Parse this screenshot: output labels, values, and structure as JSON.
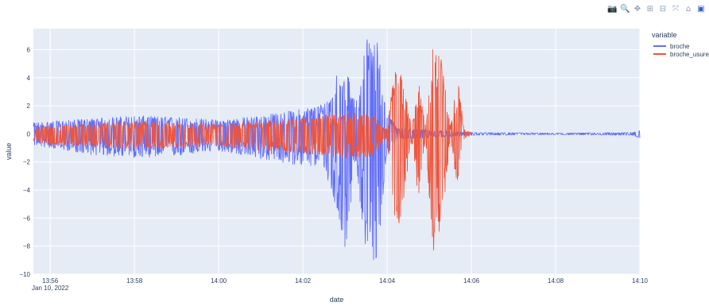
{
  "modebar": {
    "buttons": [
      {
        "name": "camera-icon",
        "glyph": "📷"
      },
      {
        "name": "zoom-icon",
        "glyph": "🔍"
      },
      {
        "name": "pan-icon",
        "glyph": "✥"
      },
      {
        "name": "zoom-in-icon",
        "glyph": "⊞"
      },
      {
        "name": "zoom-out-icon",
        "glyph": "⊟"
      },
      {
        "name": "autoscale-icon",
        "glyph": "⤧"
      },
      {
        "name": "home-icon",
        "glyph": "⌂"
      },
      {
        "name": "plotly-logo-icon",
        "glyph": "▣"
      }
    ]
  },
  "chart_data": {
    "type": "line",
    "xlabel": "date",
    "ylabel": "value",
    "x_range": [
      "2022-01-10 13:55:36",
      "2022-01-10 14:10:00"
    ],
    "ylim": [
      -10,
      7.5
    ],
    "x_ticks": [
      {
        "time": "2022-01-10 13:56:00",
        "label": "13:56",
        "sublabel": "Jan 10, 2022"
      },
      {
        "time": "2022-01-10 13:58:00",
        "label": "13:58",
        "sublabel": ""
      },
      {
        "time": "2022-01-10 14:00:00",
        "label": "14:00",
        "sublabel": ""
      },
      {
        "time": "2022-01-10 14:02:00",
        "label": "14:02",
        "sublabel": ""
      },
      {
        "time": "2022-01-10 14:04:00",
        "label": "14:04",
        "sublabel": ""
      },
      {
        "time": "2022-01-10 14:06:00",
        "label": "14:06",
        "sublabel": ""
      },
      {
        "time": "2022-01-10 14:08:00",
        "label": "14:08",
        "sublabel": ""
      },
      {
        "time": "2022-01-10 14:10:00",
        "label": "14:10",
        "sublabel": ""
      }
    ],
    "y_ticks": [
      {
        "value": 6,
        "label": "6"
      },
      {
        "value": 4,
        "label": "4"
      },
      {
        "value": 2,
        "label": "2"
      },
      {
        "value": 0,
        "label": "0"
      },
      {
        "value": -2,
        "label": "−2"
      },
      {
        "value": -4,
        "label": "−4"
      },
      {
        "value": -6,
        "label": "−6"
      },
      {
        "value": -8,
        "label": "−8"
      },
      {
        "value": -10,
        "label": "−10"
      }
    ],
    "grid": true,
    "legend": {
      "title": "variable",
      "placement": "top-right"
    },
    "series": [
      {
        "name": "broche",
        "color": "#636efa",
        "envelope": [
          {
            "time": "2022-01-10 13:55:36",
            "upper": 0.8,
            "lower": -0.8
          },
          {
            "time": "2022-01-10 13:56:00",
            "upper": 0.9,
            "lower": -1.0
          },
          {
            "time": "2022-01-10 13:57:00",
            "upper": 1.1,
            "lower": -1.5
          },
          {
            "time": "2022-01-10 13:58:00",
            "upper": 1.3,
            "lower": -1.7
          },
          {
            "time": "2022-01-10 13:59:00",
            "upper": 1.2,
            "lower": -1.6
          },
          {
            "time": "2022-01-10 14:00:00",
            "upper": 1.0,
            "lower": -1.2
          },
          {
            "time": "2022-01-10 14:01:00",
            "upper": 1.3,
            "lower": -1.8
          },
          {
            "time": "2022-01-10 14:02:00",
            "upper": 1.8,
            "lower": -2.3
          },
          {
            "time": "2022-01-10 14:02:30",
            "upper": 2.2,
            "lower": -2.4
          },
          {
            "time": "2022-01-10 14:02:50",
            "upper": 4.6,
            "lower": -6.0
          },
          {
            "time": "2022-01-10 14:03:00",
            "upper": 5.0,
            "lower": -8.5
          },
          {
            "time": "2022-01-10 14:03:15",
            "upper": 2.0,
            "lower": -2.0
          },
          {
            "time": "2022-01-10 14:03:30",
            "upper": 6.9,
            "lower": -8.8
          },
          {
            "time": "2022-01-10 14:03:45",
            "upper": 6.9,
            "lower": -9.3
          },
          {
            "time": "2022-01-10 14:04:00",
            "upper": 1.5,
            "lower": -1.5
          },
          {
            "time": "2022-01-10 14:04:15",
            "upper": 0.4,
            "lower": -0.4
          },
          {
            "time": "2022-01-10 14:05:00",
            "upper": 0.3,
            "lower": -0.3
          },
          {
            "time": "2022-01-10 14:06:00",
            "upper": 0.1,
            "lower": -0.1
          },
          {
            "time": "2022-01-10 14:08:00",
            "upper": 0.05,
            "lower": -0.05
          },
          {
            "time": "2022-01-10 14:09:50",
            "upper": 0.1,
            "lower": -0.1
          },
          {
            "time": "2022-01-10 14:10:00",
            "upper": 0.3,
            "lower": -0.3
          }
        ]
      },
      {
        "name": "broche_usure",
        "color": "#ef553b",
        "envelope": [
          {
            "time": "2022-01-10 13:55:36",
            "upper": 0.5,
            "lower": -0.5
          },
          {
            "time": "2022-01-10 13:56:00",
            "upper": 0.6,
            "lower": -0.8
          },
          {
            "time": "2022-01-10 13:57:00",
            "upper": 0.7,
            "lower": -0.9
          },
          {
            "time": "2022-01-10 13:58:00",
            "upper": 0.9,
            "lower": -1.1
          },
          {
            "time": "2022-01-10 13:59:00",
            "upper": 0.8,
            "lower": -1.0
          },
          {
            "time": "2022-01-10 14:00:00",
            "upper": 0.7,
            "lower": -0.9
          },
          {
            "time": "2022-01-10 14:01:00",
            "upper": 0.9,
            "lower": -1.2
          },
          {
            "time": "2022-01-10 14:02:00",
            "upper": 1.2,
            "lower": -1.4
          },
          {
            "time": "2022-01-10 14:03:00",
            "upper": 1.5,
            "lower": -1.8
          },
          {
            "time": "2022-01-10 14:03:40",
            "upper": 1.4,
            "lower": -1.6
          },
          {
            "time": "2022-01-10 14:04:00",
            "upper": 0.3,
            "lower": -0.3
          },
          {
            "time": "2022-01-10 14:04:10",
            "upper": 4.5,
            "lower": -6.0
          },
          {
            "time": "2022-01-10 14:04:20",
            "upper": 4.5,
            "lower": -6.5
          },
          {
            "time": "2022-01-10 14:04:35",
            "upper": 0.5,
            "lower": -0.5
          },
          {
            "time": "2022-01-10 14:04:45",
            "upper": 3.9,
            "lower": -4.8
          },
          {
            "time": "2022-01-10 14:04:55",
            "upper": 0.4,
            "lower": -0.4
          },
          {
            "time": "2022-01-10 14:05:05",
            "upper": 6.6,
            "lower": -8.6
          },
          {
            "time": "2022-01-10 14:05:15",
            "upper": 6.4,
            "lower": -8.0
          },
          {
            "time": "2022-01-10 14:05:30",
            "upper": 0.4,
            "lower": -0.4
          },
          {
            "time": "2022-01-10 14:05:40",
            "upper": 4.2,
            "lower": -3.9
          },
          {
            "time": "2022-01-10 14:05:50",
            "upper": 0.3,
            "lower": -0.3
          },
          {
            "time": "2022-01-10 14:06:00",
            "upper": 0.1,
            "lower": -0.1
          }
        ]
      }
    ]
  }
}
